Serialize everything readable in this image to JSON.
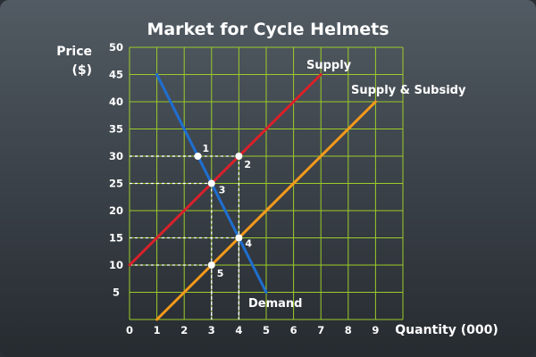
{
  "chart_data": {
    "type": "line",
    "title": "Market for Cycle Helmets",
    "ylabel_line1": "Price",
    "ylabel_line2": "($)",
    "xlabel": "Quantity (000)",
    "xlim": [
      0,
      10
    ],
    "ylim": [
      0,
      50
    ],
    "x_ticks": [
      "0",
      "1",
      "2",
      "3",
      "4",
      "5",
      "6",
      "7",
      "8",
      "9"
    ],
    "y_ticks": [
      "50",
      "45",
      "40",
      "35",
      "30",
      "25",
      "20",
      "15",
      "10",
      "5"
    ],
    "grid": true,
    "colors": {
      "grid": "#9ccc2a",
      "guide": "#ffffff",
      "demand": "#1f6fd1",
      "supply": "#d9202a",
      "subsidy": "#f59a1b",
      "point": "#ffffff"
    },
    "series": [
      {
        "name": "Supply",
        "color": "#d9202a",
        "points": [
          [
            0,
            10
          ],
          [
            7,
            45
          ]
        ]
      },
      {
        "name": "Supply & Subsidy",
        "color": "#f59a1b",
        "points": [
          [
            1,
            0
          ],
          [
            9,
            40
          ]
        ]
      },
      {
        "name": "Demand",
        "color": "#1f6fd1",
        "points": [
          [
            1,
            45
          ],
          [
            5,
            5
          ]
        ]
      }
    ],
    "annotations": [
      {
        "label": "1",
        "x": 2.5,
        "y": 30,
        "guide_h": true,
        "guide_v": false
      },
      {
        "label": "2",
        "x": 4,
        "y": 30,
        "guide_h": true,
        "guide_v": true
      },
      {
        "label": "3",
        "x": 3,
        "y": 25,
        "guide_h": true,
        "guide_v": true
      },
      {
        "label": "4",
        "x": 4,
        "y": 15,
        "guide_h": true,
        "guide_v": true
      },
      {
        "label": "5",
        "x": 3,
        "y": 10,
        "guide_h": true,
        "guide_v": true
      }
    ]
  }
}
